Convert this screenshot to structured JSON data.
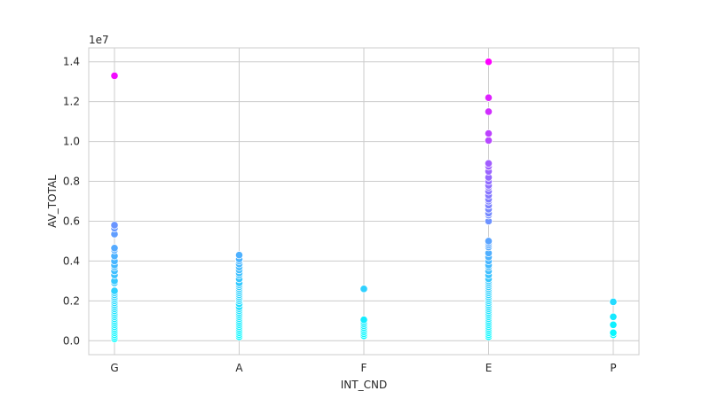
{
  "chart_data": {
    "type": "scatter",
    "xlabel": "INT_CND",
    "ylabel": "AV_TOTAL",
    "y_offset_label": "1e7",
    "categories": [
      "G",
      "A",
      "F",
      "E",
      "P"
    ],
    "ylim": [
      -0.07,
      1.47
    ],
    "y_ticks": [
      0.0,
      0.2,
      0.4,
      0.6,
      0.8,
      1.0,
      1.2,
      1.4
    ],
    "y_tick_labels": [
      "0.0",
      "0.2",
      "0.4",
      "0.6",
      "0.8",
      "1.0",
      "1.2",
      "1.4"
    ],
    "grid": true,
    "colormap": "cool",
    "color_range": [
      0.0,
      1.4
    ],
    "points": [
      {
        "x": "G",
        "y": [
          1.33,
          0.58,
          0.565,
          0.535,
          0.465,
          0.455,
          0.425,
          0.4,
          0.38,
          0.37,
          0.35,
          0.33,
          0.3,
          0.29,
          0.25,
          0.24,
          0.23,
          0.22,
          0.21,
          0.2,
          0.19,
          0.18,
          0.17,
          0.16,
          0.15,
          0.14,
          0.13,
          0.12,
          0.11,
          0.1,
          0.09,
          0.08,
          0.07,
          0.06,
          0.05,
          0.04,
          0.03,
          0.02,
          0.01
        ]
      },
      {
        "x": "A",
        "y": [
          0.43,
          0.41,
          0.4,
          0.385,
          0.37,
          0.355,
          0.34,
          0.33,
          0.31,
          0.29,
          0.28,
          0.27,
          0.26,
          0.25,
          0.24,
          0.23,
          0.22,
          0.21,
          0.2,
          0.185,
          0.17,
          0.16,
          0.15,
          0.14,
          0.13,
          0.12,
          0.11,
          0.1,
          0.09,
          0.08,
          0.07,
          0.06,
          0.05,
          0.04,
          0.03,
          0.02
        ]
      },
      {
        "x": "F",
        "y": [
          0.26,
          0.105,
          0.095,
          0.085,
          0.075,
          0.065,
          0.055,
          0.045,
          0.035,
          0.025
        ]
      },
      {
        "x": "E",
        "y": [
          1.4,
          1.22,
          1.15,
          1.04,
          1.005,
          0.89,
          0.875,
          0.85,
          0.82,
          0.8,
          0.78,
          0.77,
          0.75,
          0.73,
          0.71,
          0.7,
          0.68,
          0.66,
          0.64,
          0.63,
          0.6,
          0.5,
          0.49,
          0.48,
          0.47,
          0.44,
          0.42,
          0.4,
          0.38,
          0.37,
          0.35,
          0.33,
          0.31,
          0.3,
          0.29,
          0.28,
          0.27,
          0.26,
          0.25,
          0.24,
          0.23,
          0.22,
          0.21,
          0.2,
          0.19,
          0.18,
          0.17,
          0.16,
          0.15,
          0.14,
          0.13,
          0.12,
          0.11,
          0.1,
          0.09,
          0.08,
          0.07,
          0.06,
          0.05,
          0.04,
          0.03,
          0.02
        ]
      },
      {
        "x": "P",
        "y": [
          0.195,
          0.12,
          0.08,
          0.04,
          0.03
        ]
      }
    ]
  }
}
